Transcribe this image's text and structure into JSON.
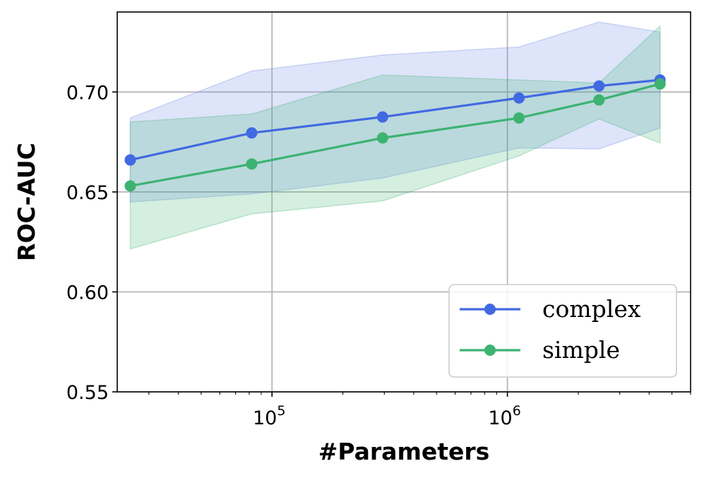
{
  "chart_data": {
    "type": "line",
    "title": "",
    "xlabel": "#Parameters",
    "ylabel": "ROC-AUC",
    "xscale": "log",
    "xlim": [
      22000,
      6000000
    ],
    "ylim": [
      0.55,
      0.74
    ],
    "grid": true,
    "legend_position": "bottom-right",
    "x_ticks": [
      {
        "value": 100000,
        "base": "10",
        "exp": "5"
      },
      {
        "value": 1000000,
        "base": "10",
        "exp": "6"
      }
    ],
    "y_ticks": [
      {
        "value": 0.55,
        "label": "0.55"
      },
      {
        "value": 0.6,
        "label": "0.60"
      },
      {
        "value": 0.65,
        "label": "0.65"
      },
      {
        "value": 0.7,
        "label": "0.70"
      }
    ],
    "x": [
      25000,
      82000,
      295000,
      1120000,
      2450000,
      4450000
    ],
    "series": [
      {
        "name": "complex",
        "color": "#4169e1",
        "band_color": "#6b85e8",
        "values": [
          0.666,
          0.6795,
          0.6875,
          0.697,
          0.703,
          0.706
        ],
        "upper": [
          0.687,
          0.7105,
          0.7185,
          0.7225,
          0.735,
          0.73
        ],
        "lower": [
          0.645,
          0.649,
          0.657,
          0.672,
          0.6715,
          0.682
        ]
      },
      {
        "name": "simple",
        "color": "#3cb371",
        "band_color": "#3cb371",
        "values": [
          0.653,
          0.664,
          0.677,
          0.687,
          0.696,
          0.704
        ],
        "upper": [
          0.685,
          0.689,
          0.7085,
          0.706,
          0.7045,
          0.733
        ],
        "lower": [
          0.6215,
          0.639,
          0.6455,
          0.668,
          0.6865,
          0.6745
        ]
      }
    ]
  }
}
